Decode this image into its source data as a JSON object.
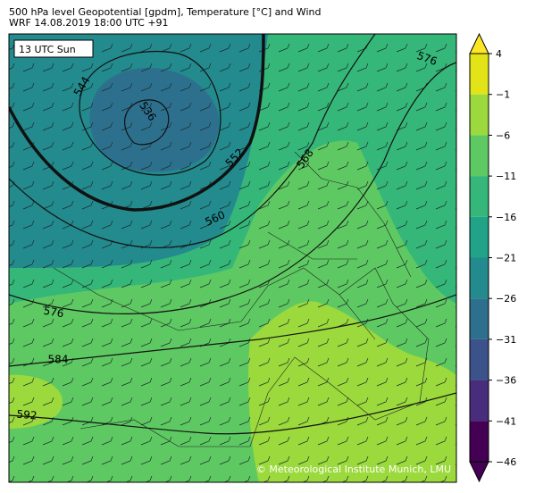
{
  "header": {
    "line1": "500 hPa level Geopotential [gpdm], Temperature [°C] and Wind",
    "line2": "WRF 14.08.2019 18:00 UTC +91"
  },
  "map": {
    "time_label": "13 UTC Sun",
    "credit": "© Meteorological Institute Munich, LMU",
    "contour_labels": [
      "544",
      "536",
      "552",
      "560",
      "568",
      "576",
      "576",
      "584",
      "592"
    ]
  },
  "colorbar": {
    "ticks": [
      4,
      {
        "value": -1,
        "label": "−1"
      },
      {
        "value": -6,
        "label": "−6"
      },
      {
        "value": -11,
        "label": "−11"
      },
      {
        "value": -16,
        "label": "−16"
      },
      {
        "value": -21,
        "label": "−21"
      },
      {
        "value": -26,
        "label": "−26"
      },
      {
        "value": -31,
        "label": "−31"
      },
      {
        "value": -36,
        "label": "−36"
      },
      {
        "value": -41,
        "label": "−41"
      },
      {
        "value": -46,
        "label": "−46"
      }
    ],
    "colors": [
      "#e2e418",
      "#9bd93c",
      "#5ec962",
      "#35b779",
      "#20a386",
      "#238a8d",
      "#2d708e",
      "#3b528b",
      "#472d7b",
      "#440154"
    ],
    "over_color": "#fde725",
    "under_color": "#440154"
  }
}
